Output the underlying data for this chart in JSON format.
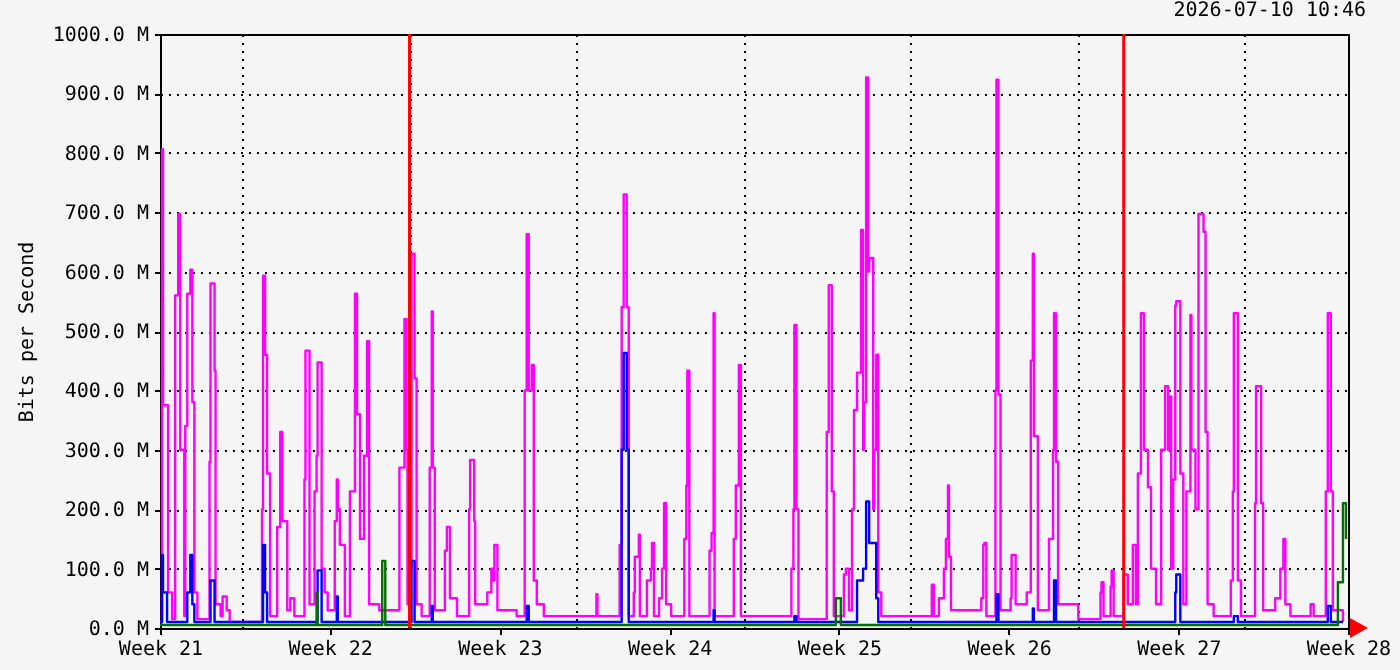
{
  "chart_data": {
    "type": "step",
    "ylabel": "Bits per Second",
    "annotations": [
      "2026-07-10 10:46"
    ],
    "xlim": [
      "2026-05-18T00:00",
      "2026-07-06T00:00"
    ],
    "ylim": [
      0,
      1000
    ],
    "xticks": [
      {
        "value": "2026-05-18T00:00",
        "label": "Week 21"
      },
      {
        "value": "2026-05-21T10:00",
        "label": null
      },
      {
        "value": "2026-05-25T00:00",
        "label": "Week 22"
      },
      {
        "value": "2026-05-28T07:00",
        "label": null
      },
      {
        "value": "2026-06-01T00:00",
        "label": "Week 23"
      },
      {
        "value": "2026-06-04T04:00",
        "label": null
      },
      {
        "value": "2026-06-08T00:00",
        "label": "Week 24"
      },
      {
        "value": "2026-06-11T02:00",
        "label": null
      },
      {
        "value": "2026-06-15T00:00",
        "label": "Week 25"
      },
      {
        "value": "2026-06-17T23:00",
        "label": null
      },
      {
        "value": "2026-06-22T00:00",
        "label": "Week 26"
      },
      {
        "value": "2026-06-24T21:00",
        "label": null
      },
      {
        "value": "2026-06-29T00:00",
        "label": "Week 27"
      },
      {
        "value": "2026-07-01T18:00",
        "label": null
      },
      {
        "value": "2026-07-06T00:00",
        "label": "Week 28"
      }
    ],
    "yticks": [
      {
        "value": 0,
        "label": "0.0 M"
      },
      {
        "value": 100,
        "label": "100.0 M"
      },
      {
        "value": 200,
        "label": "200.0 M"
      },
      {
        "value": 300,
        "label": "300.0 M"
      },
      {
        "value": 400,
        "label": "400.0 M"
      },
      {
        "value": 500,
        "label": "500.0 M"
      },
      {
        "value": 600,
        "label": "600.0 M"
      },
      {
        "value": 700,
        "label": "700.0 M"
      },
      {
        "value": 800,
        "label": "800.0 M"
      },
      {
        "value": 900,
        "label": "900.0 M"
      },
      {
        "value": 1000,
        "label": "1000.0 M"
      }
    ],
    "grid": true,
    "ref_lines": [
      {
        "axis": "x",
        "value": "2026-05-28T07:00",
        "color": "#ff0000"
      },
      {
        "axis": "x",
        "value": "2026-06-26T18:00",
        "color": "#ff0000"
      }
    ],
    "series": [
      {
        "color": "#ff00ff",
        "x": [
          "2026-05-18T00:00",
          "2026-05-18T02:00",
          "2026-05-18T03:00",
          "2026-05-18T08:00",
          "2026-05-18T12:00",
          "2026-05-18T15:00",
          "2026-05-18T18:00",
          "2026-05-18T20:00",
          "2026-05-19T00:00",
          "2026-05-19T01:00",
          "2026-05-19T03:00",
          "2026-05-19T06:00",
          "2026-05-19T08:00",
          "2026-05-19T10:00",
          "2026-05-19T13:00",
          "2026-05-20T01:00",
          "2026-05-20T02:00",
          "2026-05-20T06:00",
          "2026-05-20T07:00",
          "2026-05-20T12:00",
          "2026-05-20T14:00",
          "2026-05-20T18:00",
          "2026-05-20T21:00",
          "2026-05-22T05:00",
          "2026-05-22T06:00",
          "2026-05-22T08:00",
          "2026-05-22T10:00",
          "2026-05-22T13:00",
          "2026-05-22T20:00",
          "2026-05-22T23:00",
          "2026-05-23T01:00",
          "2026-05-23T06:00",
          "2026-05-23T09:00",
          "2026-05-23T13:00",
          "2026-05-23T23:00",
          "2026-05-24T00:00",
          "2026-05-24T04:00",
          "2026-05-24T09:00",
          "2026-05-24T11:00",
          "2026-05-24T12:00",
          "2026-05-24T16:00",
          "2026-05-24T19:00",
          "2026-05-24T22:00",
          "2026-05-25T05:00",
          "2026-05-25T07:00",
          "2026-05-25T08:00",
          "2026-05-25T10:00",
          "2026-05-25T15:00",
          "2026-05-25T20:00",
          "2026-05-26T01:00",
          "2026-05-26T03:00",
          "2026-05-26T06:00",
          "2026-05-26T10:00",
          "2026-05-26T13:00",
          "2026-05-26T15:00",
          "2026-05-27T01:00",
          "2026-05-27T21:00",
          "2026-05-28T02:00",
          "2026-05-28T04:00",
          "2026-05-28T05:00",
          "2026-05-28T07:00",
          "2026-05-28T09:00",
          "2026-05-28T12:00",
          "2026-05-28T14:00",
          "2026-05-28T19:00",
          "2026-05-29T03:00",
          "2026-05-29T05:00",
          "2026-05-29T06:00",
          "2026-05-29T08:00",
          "2026-05-29T18:00",
          "2026-05-29T20:00",
          "2026-05-29T23:00",
          "2026-05-30T06:00",
          "2026-05-30T18:00",
          "2026-05-30T19:00",
          "2026-05-30T23:00",
          "2026-05-31T00:00",
          "2026-05-31T12:00",
          "2026-05-31T16:00",
          "2026-05-31T17:00",
          "2026-05-31T19:00",
          "2026-05-31T22:00",
          "2026-06-01T17:00",
          "2026-06-02T01:00",
          "2026-06-02T03:00",
          "2026-06-02T05:00",
          "2026-06-02T08:00",
          "2026-06-02T10:00",
          "2026-06-02T13:00",
          "2026-06-02T20:00",
          "2026-06-04T22:00",
          "2026-06-05T00:00",
          "2026-06-05T01:00",
          "2026-06-05T23:00",
          "2026-06-06T01:00",
          "2026-06-06T03:00",
          "2026-06-06T06:00",
          "2026-06-06T08:00",
          "2026-06-06T13:00",
          "2026-06-06T14:00",
          "2026-06-06T18:00",
          "2026-06-06T19:00",
          "2026-06-07T02:00",
          "2026-06-07T06:00",
          "2026-06-07T07:00",
          "2026-06-07T09:00",
          "2026-06-07T14:00",
          "2026-06-07T17:00",
          "2026-06-07T19:00",
          "2026-06-07T21:00",
          "2026-06-08T02:00",
          "2026-06-08T15:00",
          "2026-06-08T17:00",
          "2026-06-08T18:00",
          "2026-06-08T20:00",
          "2026-06-09T16:00",
          "2026-06-09T18:00",
          "2026-06-09T20:00",
          "2026-06-09T21:00",
          "2026-06-10T16:00",
          "2026-06-10T18:00",
          "2026-06-10T21:00",
          "2026-06-10T23:00",
          "2026-06-13T01:00",
          "2026-06-13T03:00",
          "2026-06-13T04:00",
          "2026-06-13T06:00",
          "2026-06-13T08:00",
          "2026-06-14T12:00",
          "2026-06-14T14:00",
          "2026-06-14T17:00",
          "2026-06-14T19:00",
          "2026-06-15T05:00",
          "2026-06-15T07:00",
          "2026-06-15T10:00",
          "2026-06-15T13:00",
          "2026-06-15T15:00",
          "2026-06-15T18:00",
          "2026-06-15T22:00",
          "2026-06-16T00:00",
          "2026-06-16T01:00",
          "2026-06-16T03:00",
          "2026-06-16T05:00",
          "2026-06-16T06:00",
          "2026-06-16T10:00",
          "2026-06-16T11:00",
          "2026-06-16T13:00",
          "2026-06-16T15:00",
          "2026-06-16T18:00",
          "2026-06-18T17:00",
          "2026-06-18T20:00",
          "2026-06-18T22:00",
          "2026-06-19T03:00",
          "2026-06-19T08:00",
          "2026-06-19T10:00",
          "2026-06-19T12:00",
          "2026-06-19T13:00",
          "2026-06-19T15:00",
          "2026-06-20T21:00",
          "2026-06-20T23:00",
          "2026-06-21T00:00",
          "2026-06-21T02:00",
          "2026-06-21T11:00",
          "2026-06-21T12:00",
          "2026-06-21T14:00",
          "2026-06-21T16:00",
          "2026-06-22T02:00",
          "2026-06-22T03:00",
          "2026-06-22T07:00",
          "2026-06-22T18:00",
          "2026-06-22T22:00",
          "2026-06-23T00:00",
          "2026-06-23T01:00",
          "2026-06-23T05:00",
          "2026-06-23T16:00",
          "2026-06-23T20:00",
          "2026-06-23T21:00",
          "2026-06-23T23:00",
          "2026-06-24T01:00",
          "2026-06-24T21:00",
          "2026-06-25T19:00",
          "2026-06-25T20:00",
          "2026-06-25T22:00",
          "2026-06-26T05:00",
          "2026-06-26T06:00",
          "2026-06-26T08:00",
          "2026-06-26T18:00",
          "2026-06-26T22:00",
          "2026-06-27T03:00",
          "2026-06-27T06:00",
          "2026-06-27T08:00",
          "2026-06-27T11:00",
          "2026-06-27T14:00",
          "2026-06-27T18:00",
          "2026-06-27T21:00",
          "2026-06-28T02:00",
          "2026-06-28T07:00",
          "2026-06-28T11:00",
          "2026-06-28T14:00",
          "2026-06-28T16:00",
          "2026-06-28T17:00",
          "2026-06-28T19:00",
          "2026-06-28T21:00",
          "2026-06-28T22:00",
          "2026-06-29T02:00",
          "2026-06-29T05:00",
          "2026-06-29T08:00",
          "2026-06-29T12:00",
          "2026-06-29T13:00",
          "2026-06-29T17:00",
          "2026-06-29T20:00",
          "2026-06-30T01:00",
          "2026-06-30T03:00",
          "2026-06-30T05:00",
          "2026-06-30T11:00",
          "2026-07-01T04:00",
          "2026-07-01T06:00",
          "2026-07-01T07:00",
          "2026-07-01T11:00",
          "2026-07-01T14:00",
          "2026-07-02T04:00",
          "2026-07-02T05:00",
          "2026-07-02T10:00",
          "2026-07-02T12:00",
          "2026-07-03T00:00",
          "2026-07-03T05:00",
          "2026-07-03T08:00",
          "2026-07-03T10:00",
          "2026-07-03T15:00",
          "2026-07-04T11:00",
          "2026-07-04T14:00",
          "2026-07-05T02:00",
          "2026-07-05T04:00",
          "2026-07-05T07:00",
          "2026-07-05T09:00",
          "2026-07-05T19:00"
        ],
        "values": [
          10,
          806,
          375,
          60,
          15,
          560,
          697,
          300,
          20,
          340,
          563,
          603,
          380,
          60,
          15,
          280,
          580,
          433,
          40,
          20,
          53,
          30,
          10,
          200,
          593,
          460,
          260,
          20,
          170,
          330,
          180,
          30,
          50,
          20,
          250,
          467,
          40,
          230,
          290,
          447,
          100,
          60,
          30,
          180,
          250,
          200,
          140,
          20,
          230,
          563,
          360,
          150,
          290,
          483,
          40,
          30,
          270,
          520,
          300,
          40,
          100,
          630,
          420,
          40,
          20,
          270,
          533,
          270,
          30,
          130,
          170,
          50,
          20,
          200,
          283,
          180,
          40,
          60,
          100,
          80,
          140,
          30,
          20,
          400,
          663,
          400,
          443,
          80,
          40,
          20,
          20,
          57,
          20,
          140,
          540,
          730,
          540,
          20,
          60,
          120,
          157,
          20,
          80,
          100,
          143,
          20,
          50,
          100,
          210,
          40,
          20,
          150,
          240,
          433,
          20,
          130,
          160,
          530,
          20,
          150,
          240,
          443,
          20,
          100,
          200,
          510,
          200,
          15,
          330,
          577,
          230,
          20,
          90,
          100,
          30,
          200,
          367,
          430,
          670,
          300,
          380,
          927,
          600,
          623,
          200,
          300,
          460,
          60,
          20,
          20,
          73,
          20,
          50,
          100,
          150,
          240,
          120,
          30,
          50,
          140,
          143,
          20,
          400,
          923,
          393,
          30,
          50,
          123,
          40,
          60,
          450,
          630,
          323,
          30,
          150,
          300,
          530,
          280,
          40,
          15,
          60,
          77,
          20,
          70,
          97,
          20,
          90,
          40,
          140,
          40,
          260,
          530,
          300,
          237,
          100,
          40,
          300,
          407,
          300,
          390,
          100,
          250,
          543,
          550,
          260,
          40,
          230,
          527,
          300,
          200,
          697,
          667,
          330,
          40,
          20,
          80,
          230,
          530,
          80,
          20,
          210,
          407,
          210,
          30,
          50,
          100,
          150,
          40,
          20,
          40,
          20,
          230,
          530,
          230,
          30,
          10
        ]
      },
      {
        "color": "#0000ff",
        "x": [
          "2026-05-18T00:00",
          "2026-05-18T02:00",
          "2026-05-18T03:00",
          "2026-05-18T07:00",
          "2026-05-19T03:00",
          "2026-05-19T06:00",
          "2026-05-19T08:00",
          "2026-05-19T10:00",
          "2026-05-20T02:00",
          "2026-05-20T06:00",
          "2026-05-22T06:00",
          "2026-05-22T08:00",
          "2026-05-22T10:00",
          "2026-05-24T12:00",
          "2026-05-24T16:00",
          "2026-05-25T07:00",
          "2026-05-25T08:00",
          "2026-05-28T09:00",
          "2026-05-28T12:00",
          "2026-05-29T05:00",
          "2026-05-29T06:00",
          "2026-06-02T03:00",
          "2026-06-02T05:00",
          "2026-06-06T01:00",
          "2026-06-06T03:00",
          "2026-06-06T06:00",
          "2026-06-06T08:00",
          "2026-06-09T20:00",
          "2026-06-09T21:00",
          "2026-06-13T04:00",
          "2026-06-13T06:00",
          "2026-06-15T18:00",
          "2026-06-16T00:00",
          "2026-06-16T03:00",
          "2026-06-16T06:00",
          "2026-06-16T13:00",
          "2026-06-16T15:00",
          "2026-06-21T12:00",
          "2026-06-21T14:00",
          "2026-06-23T00:00",
          "2026-06-23T01:00",
          "2026-06-23T21:00",
          "2026-06-23T23:00",
          "2026-06-28T21:00",
          "2026-06-28T22:00",
          "2026-06-29T02:00",
          "2026-07-01T07:00",
          "2026-07-01T11:00",
          "2026-07-05T04:00",
          "2026-07-05T07:00",
          "2026-07-05T19:00"
        ],
        "values": [
          10,
          123,
          60,
          10,
          60,
          123,
          40,
          10,
          80,
          10,
          140,
          60,
          10,
          97,
          10,
          53,
          10,
          113,
          10,
          37,
          10,
          37,
          10,
          300,
          463,
          300,
          10,
          30,
          10,
          20,
          10,
          80,
          100,
          213,
          143,
          50,
          10,
          57,
          10,
          33,
          10,
          80,
          10,
          60,
          90,
          10,
          20,
          10,
          37,
          10,
          10
        ]
      },
      {
        "color": "#007000",
        "x": [
          "2026-05-18T00:00",
          "2026-05-24T11:00",
          "2026-05-24T12:00",
          "2026-05-27T04:00",
          "2026-05-27T07:00",
          "2026-06-14T21:00",
          "2026-06-15T02:00",
          "2026-07-05T14:00",
          "2026-07-05T19:00",
          "2026-07-05T22:00"
        ],
        "values": [
          5,
          60,
          5,
          113,
          5,
          50,
          5,
          77,
          210,
          150
        ]
      }
    ]
  }
}
